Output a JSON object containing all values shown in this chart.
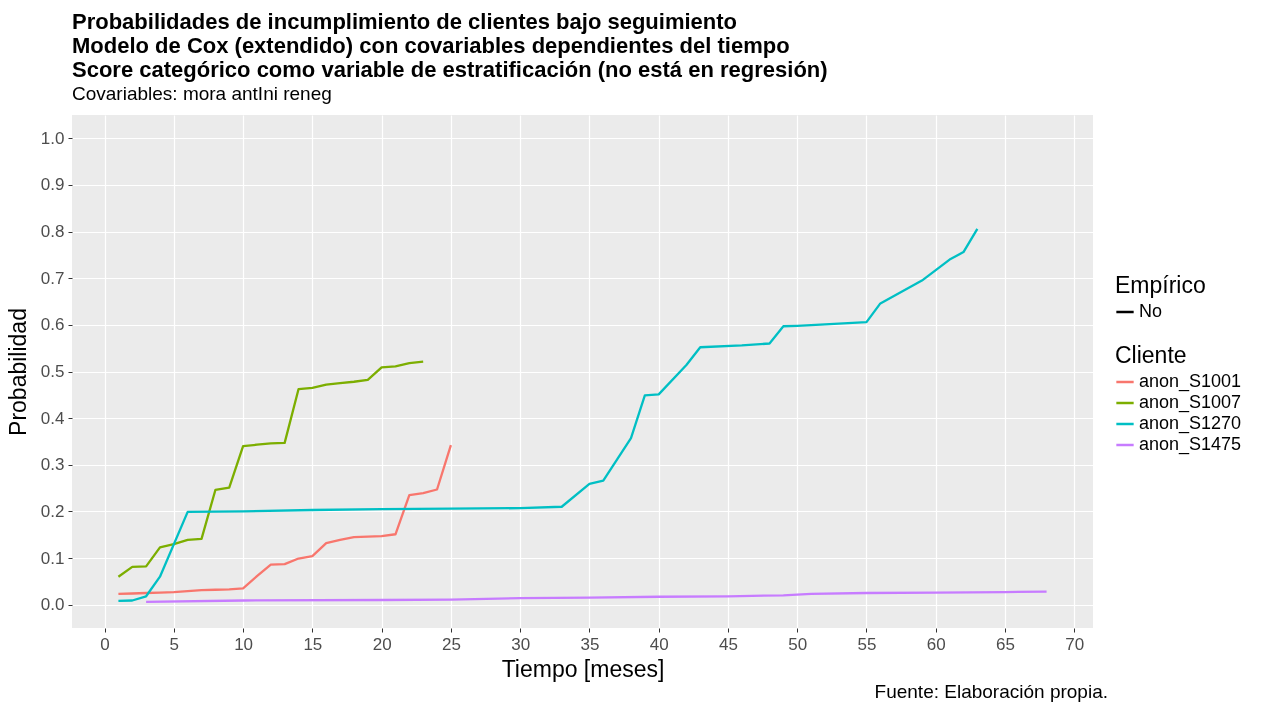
{
  "chart_data": {
    "type": "line",
    "title": [
      "Probabilidades de incumplimiento de clientes bajo seguimiento",
      "Modelo de Cox (extendido) con covariables dependientes del tiempo",
      "Score categórico como variable de estratificación (no está en regresión)"
    ],
    "subtitle": "Covariables: mora antIni reneg",
    "xlabel": "Tiempo [meses]",
    "ylabel": "Probabilidad",
    "legend_title": "Cliente",
    "annotations": [
      "Fuente: Elaboración propia.",
      "Empírico",
      "No"
    ],
    "series": [
      {
        "name": "anon_S1001",
        "color": "#f8766d",
        "x": [
          1,
          2,
          3,
          4,
          5,
          6,
          7,
          8,
          9,
          10,
          11,
          12,
          13,
          14,
          15,
          16,
          17,
          18,
          19,
          20,
          21,
          22,
          23,
          24,
          25
        ],
        "values": [
          0.023,
          0.024,
          0.025,
          0.026,
          0.027,
          0.029,
          0.031,
          0.032,
          0.033,
          0.035,
          0.061,
          0.086,
          0.087,
          0.099,
          0.104,
          0.132,
          0.139,
          0.145,
          0.146,
          0.147,
          0.151,
          0.235,
          0.239,
          0.247,
          0.342
        ]
      },
      {
        "name": "anon_S1007",
        "color": "#7cae00",
        "x": [
          1,
          2,
          3,
          4,
          5,
          6,
          7,
          8,
          9,
          10,
          11,
          12,
          13,
          14,
          15,
          16,
          17,
          18,
          19,
          20,
          21,
          22,
          23
        ],
        "values": [
          0.06,
          0.081,
          0.082,
          0.123,
          0.13,
          0.139,
          0.141,
          0.246,
          0.251,
          0.34,
          0.343,
          0.346,
          0.347,
          0.462,
          0.465,
          0.472,
          0.475,
          0.478,
          0.482,
          0.509,
          0.511,
          0.518,
          0.521
        ]
      },
      {
        "name": "anon_S1270",
        "color": "#00bfc4",
        "x": [
          1,
          2,
          3,
          4,
          6,
          10,
          15,
          20,
          25,
          30,
          33,
          35,
          36,
          38,
          39,
          40,
          42,
          43,
          46,
          48,
          49,
          50,
          55,
          56,
          59,
          61,
          62,
          63
        ],
        "values": [
          0.008,
          0.009,
          0.018,
          0.06,
          0.199,
          0.2,
          0.203,
          0.205,
          0.206,
          0.207,
          0.21,
          0.259,
          0.266,
          0.357,
          0.449,
          0.451,
          0.514,
          0.552,
          0.556,
          0.56,
          0.597,
          0.598,
          0.606,
          0.646,
          0.695,
          0.74,
          0.756,
          0.806
        ]
      },
      {
        "name": "anon_S1475",
        "color": "#c77cff",
        "x": [
          3,
          10,
          20,
          25,
          30,
          35,
          40,
          45,
          49,
          51,
          55,
          60,
          65,
          68
        ],
        "values": [
          0.006,
          0.009,
          0.01,
          0.011,
          0.014,
          0.015,
          0.017,
          0.018,
          0.02,
          0.023,
          0.025,
          0.026,
          0.027,
          0.028
        ]
      }
    ],
    "xlim": [
      -2.35,
      71.35
    ],
    "xticks": [
      0,
      5,
      10,
      15,
      20,
      25,
      30,
      35,
      40,
      45,
      50,
      55,
      60,
      65,
      70
    ],
    "ylim": [
      -0.05,
      1.05
    ],
    "yticks": [
      {
        "value": 0,
        "label": "0.0"
      },
      0.1,
      0.2,
      0.3,
      0.4,
      0.5,
      0.6,
      0.7,
      0.8,
      0.9,
      {
        "value": 1,
        "label": "1.0"
      }
    ],
    "grid": true,
    "legend": "right",
    "line_style": "solid"
  }
}
